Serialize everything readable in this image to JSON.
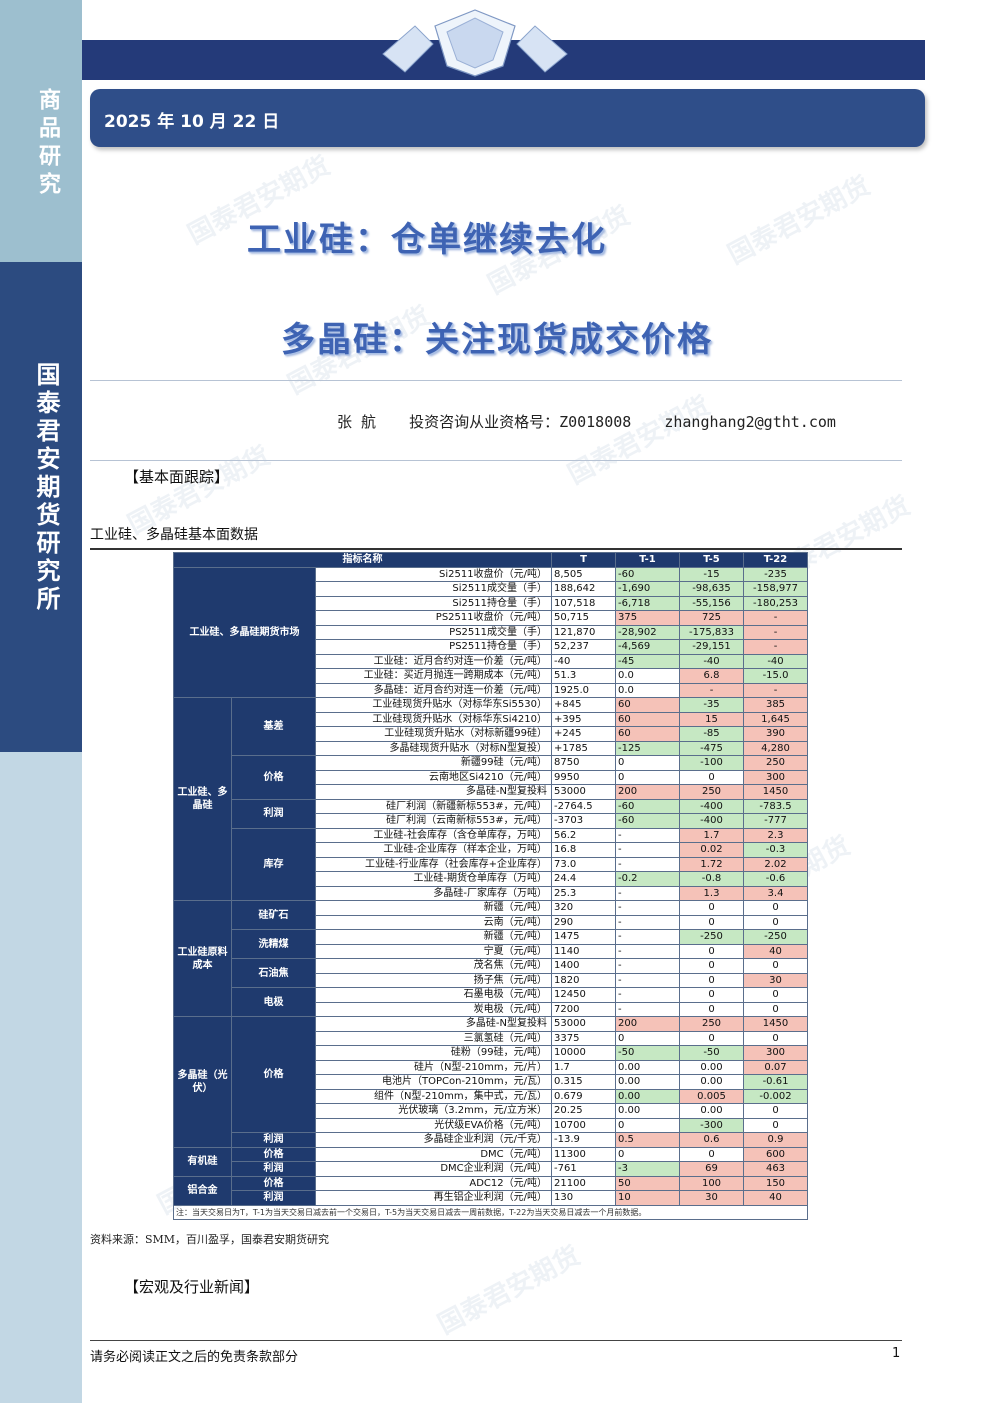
{
  "sidebar": {
    "top_label": "商品研究",
    "bottom_label": "国泰君安期货研究所"
  },
  "header": {
    "date": "2025 年 10 月 22 日"
  },
  "watermark": "国泰君安期货",
  "title": {
    "line1": "工业硅：仓单继续去化",
    "line2": "多晶硅：关注现货成交价格"
  },
  "author": {
    "name": "张  航",
    "license": "投资咨询从业资格号：Z0018008",
    "email": "zhanghang2@gtht.com"
  },
  "sections": {
    "fundamental": "【基本面跟踪】",
    "news": "【宏观及行业新闻】"
  },
  "table_caption": "工业硅、多晶硅基本面数据",
  "table": {
    "headers": [
      "指标名称",
      "T",
      "T-1",
      "T-5",
      "T-22"
    ],
    "groups": {
      "futures": "工业硅、多晶硅期货市场",
      "spot": "工业硅、多晶硅",
      "basis": "基差",
      "price": "价格",
      "profit": "利润",
      "inventory": "库存",
      "raw": "工业硅原料成本",
      "ore": "硅矿石",
      "coal": "洗精煤",
      "coke": "石油焦",
      "electrode": "电极",
      "pv": "多晶硅（光伏）",
      "pv_price": "价格",
      "pv_profit": "利润",
      "silicone": "有机硅",
      "silicone_price": "价格",
      "silicone_profit": "利润",
      "alloy": "铝合金",
      "alloy_price": "价格",
      "alloy_profit": "利润"
    },
    "rows": [
      [
        "Si2511收盘价（元/吨）",
        "8,505",
        "-60",
        "-15",
        "-235"
      ],
      [
        "Si2511成交量（手）",
        "188,642",
        "-1,690",
        "-98,635",
        "-158,977"
      ],
      [
        "Si2511持仓量（手）",
        "107,518",
        "-6,718",
        "-55,156",
        "-180,253"
      ],
      [
        "PS2511收盘价（元/吨）",
        "50,715",
        "375",
        "725",
        "-"
      ],
      [
        "PS2511成交量（手）",
        "121,870",
        "-28,902",
        "-175,833",
        "-"
      ],
      [
        "PS2511持仓量（手）",
        "52,237",
        "-4,569",
        "-29,151",
        "-"
      ],
      [
        "工业硅：近月合约对连一价差（元/吨）",
        "-40",
        "-45",
        "-40",
        "-40"
      ],
      [
        "工业硅：买近月抛连一跨期成本（元/吨）",
        "51.3",
        "0.0",
        "6.8",
        "-15.0"
      ],
      [
        "多晶硅：近月合约对连一价差（元/吨）",
        "1925.0",
        "0.0",
        "-",
        "-"
      ],
      [
        "工业硅现货升贴水（对标华东Si5530）",
        "+845",
        "60",
        "-35",
        "385"
      ],
      [
        "工业硅现货升贴水（对标华东Si4210）",
        "+395",
        "60",
        "15",
        "1,645"
      ],
      [
        "工业硅现货升贴水（对标新疆99硅）",
        "+245",
        "60",
        "-85",
        "390"
      ],
      [
        "多晶硅现货升贴水（对标N型复投）",
        "+1785",
        "-125",
        "-475",
        "4,280"
      ],
      [
        "新疆99硅（元/吨）",
        "8750",
        "0",
        "-100",
        "250"
      ],
      [
        "云南地区Si4210（元/吨）",
        "9950",
        "0",
        "0",
        "300"
      ],
      [
        "多晶硅-N型复投料",
        "53000",
        "200",
        "250",
        "1450"
      ],
      [
        "硅厂利润（新疆新标553#，元/吨）",
        "-2764.5",
        "-60",
        "-400",
        "-783.5"
      ],
      [
        "硅厂利润（云南新标553#，元/吨）",
        "-3703",
        "-60",
        "-400",
        "-777"
      ],
      [
        "工业硅-社会库存（含仓单库存，万吨）",
        "56.2",
        "-",
        "1.7",
        "2.3"
      ],
      [
        "工业硅-企业库存（样本企业，万吨）",
        "16.8",
        "-",
        "0.02",
        "-0.3"
      ],
      [
        "工业硅-行业库存（社会库存+企业库存）",
        "73.0",
        "-",
        "1.72",
        "2.02"
      ],
      [
        "工业硅-期货仓单库存（万吨）",
        "24.4",
        "-0.2",
        "-0.8",
        "-0.6"
      ],
      [
        "多晶硅-厂家库存（万吨）",
        "25.3",
        "-",
        "1.3",
        "3.4"
      ],
      [
        "新疆（元/吨）",
        "320",
        "-",
        "0",
        "0"
      ],
      [
        "云南（元/吨）",
        "290",
        "-",
        "0",
        "0"
      ],
      [
        "新疆（元/吨）",
        "1475",
        "-",
        "-250",
        "-250"
      ],
      [
        "宁夏（元/吨）",
        "1140",
        "-",
        "0",
        "40"
      ],
      [
        "茂名焦（元/吨）",
        "1400",
        "-",
        "0",
        "0"
      ],
      [
        "扬子焦（元/吨）",
        "1820",
        "-",
        "0",
        "30"
      ],
      [
        "石墨电极（元/吨）",
        "12450",
        "-",
        "0",
        "0"
      ],
      [
        "炭电极（元/吨）",
        "7200",
        "-",
        "0",
        "0"
      ],
      [
        "多晶硅-N型复投料",
        "53000",
        "200",
        "250",
        "1450"
      ],
      [
        "三氯氢硅（元/吨）",
        "3375",
        "0",
        "0",
        "0"
      ],
      [
        "硅粉（99硅，元/吨）",
        "10000",
        "-50",
        "-50",
        "300"
      ],
      [
        "硅片（N型-210mm，元/片）",
        "1.7",
        "0.00",
        "0.00",
        "0.07"
      ],
      [
        "电池片（TOPCon-210mm，元/瓦）",
        "0.315",
        "0.00",
        "0.00",
        "-0.61"
      ],
      [
        "组件（N型-210mm，集中式，元/瓦）",
        "0.679",
        "0.00",
        "0.005",
        "-0.002"
      ],
      [
        "光伏玻璃（3.2mm，元/立方米）",
        "20.25",
        "0.00",
        "0.00",
        "0"
      ],
      [
        "光伏级EVA价格（元/吨）",
        "10700",
        "0",
        "-300",
        "0"
      ],
      [
        "多晶硅企业利润（元/千克）",
        "-13.9",
        "0.5",
        "0.6",
        "0.9"
      ],
      [
        "DMC（元/吨）",
        "11300",
        "0",
        "0",
        "600"
      ],
      [
        "DMC企业利润（元/吨）",
        "-761",
        "-3",
        "69",
        "463"
      ],
      [
        "ADC12（元/吨）",
        "21100",
        "50",
        "100",
        "150"
      ],
      [
        "再生铝企业利润（元/吨）",
        "130",
        "10",
        "30",
        "40"
      ]
    ],
    "colors": [
      [
        "g",
        "g",
        "g"
      ],
      [
        "g",
        "g",
        "g"
      ],
      [
        "g",
        "g",
        "g"
      ],
      [
        "r",
        "r",
        "r"
      ],
      [
        "g",
        "g",
        "r"
      ],
      [
        "g",
        "g",
        "r"
      ],
      [
        "g",
        "g",
        "g"
      ],
      [
        "w",
        "r",
        "g"
      ],
      [
        "w",
        "r",
        "r"
      ],
      [
        "r",
        "g",
        "r"
      ],
      [
        "r",
        "r",
        "r"
      ],
      [
        "r",
        "g",
        "r"
      ],
      [
        "g",
        "g",
        "r"
      ],
      [
        "w",
        "g",
        "r"
      ],
      [
        "w",
        "w",
        "r"
      ],
      [
        "r",
        "r",
        "r"
      ],
      [
        "g",
        "g",
        "g"
      ],
      [
        "g",
        "g",
        "g"
      ],
      [
        "w",
        "r",
        "r"
      ],
      [
        "w",
        "r",
        "g"
      ],
      [
        "w",
        "r",
        "r"
      ],
      [
        "g",
        "g",
        "g"
      ],
      [
        "w",
        "r",
        "r"
      ],
      [
        "w",
        "w",
        "w"
      ],
      [
        "w",
        "w",
        "w"
      ],
      [
        "w",
        "g",
        "g"
      ],
      [
        "w",
        "w",
        "r"
      ],
      [
        "w",
        "w",
        "w"
      ],
      [
        "w",
        "w",
        "r"
      ],
      [
        "w",
        "w",
        "w"
      ],
      [
        "w",
        "w",
        "w"
      ],
      [
        "r",
        "r",
        "r"
      ],
      [
        "w",
        "w",
        "w"
      ],
      [
        "g",
        "g",
        "r"
      ],
      [
        "w",
        "w",
        "r"
      ],
      [
        "w",
        "w",
        "g"
      ],
      [
        "g",
        "r",
        "g"
      ],
      [
        "w",
        "w",
        "w"
      ],
      [
        "w",
        "g",
        "w"
      ],
      [
        "r",
        "r",
        "r"
      ],
      [
        "w",
        "w",
        "r"
      ],
      [
        "g",
        "r",
        "r"
      ],
      [
        "r",
        "r",
        "r"
      ],
      [
        "r",
        "r",
        "r"
      ]
    ],
    "note": "注：当天交易日为T，T-1为当天交易日减去前一个交易日，T-5为当天交易日减去一周前数据，T-22为当天交易日减去一个月前数据。"
  },
  "source": "资料来源：SMM，百川盈孚，国泰君安期货研究",
  "footer": {
    "disclaimer": "请务必阅读正文之后的免责条款部分",
    "page": "1"
  }
}
